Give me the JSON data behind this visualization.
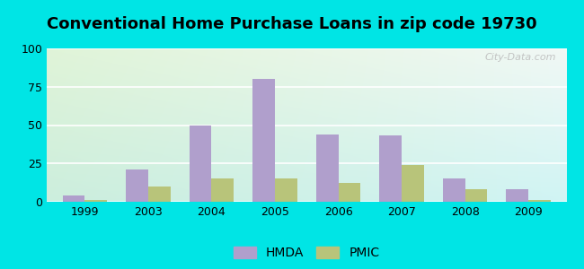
{
  "title": "Conventional Home Purchase Loans in zip code 19730",
  "years": [
    "1999",
    "2003",
    "2004",
    "2005",
    "2006",
    "2007",
    "2008",
    "2009"
  ],
  "hmda": [
    4,
    21,
    50,
    80,
    44,
    43,
    15,
    8
  ],
  "pmic": [
    1,
    10,
    15,
    15,
    12,
    24,
    8,
    1
  ],
  "ylim": [
    0,
    100
  ],
  "yticks": [
    0,
    25,
    50,
    75,
    100
  ],
  "bar_width": 0.35,
  "hmda_color": "#b09fcc",
  "pmic_color": "#b8c47a",
  "outer_bg": "#00e5e5",
  "title_fontsize": 13,
  "legend_labels": [
    "HMDA",
    "PMIC"
  ],
  "watermark": "City-Data.com"
}
